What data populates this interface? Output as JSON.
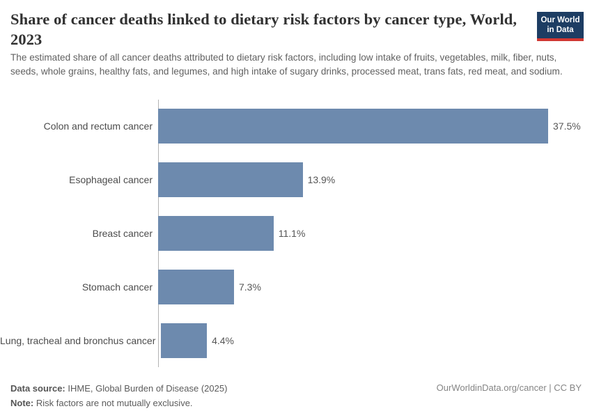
{
  "header": {
    "title": "Share of cancer deaths linked to dietary risk factors by cancer type, World, 2023",
    "subtitle": "The estimated share of all cancer deaths attributed to dietary risk factors, including low intake of fruits, vegetables, milk, fiber, nuts, seeds, whole grains, healthy fats, and legumes, and high intake of sugary drinks, processed meat, trans fats, red meat, and sodium."
  },
  "logo": {
    "line1": "Our World",
    "line2": "in Data",
    "bg_color": "#1d3d63",
    "accent_color": "#d23732"
  },
  "chart_data": {
    "type": "bar",
    "orientation": "horizontal",
    "title": "Share of cancer deaths linked to dietary risk factors by cancer type, World, 2023",
    "categories": [
      "Colon and rectum cancer",
      "Esophageal cancer",
      "Breast cancer",
      "Stomach cancer",
      "Lung, tracheal and bronchus cancer"
    ],
    "values": [
      37.5,
      13.9,
      11.1,
      7.3,
      4.4
    ],
    "value_labels": [
      "37.5%",
      "13.9%",
      "11.1%",
      "7.3%",
      "4.4%"
    ],
    "unit": "%",
    "xlim": [
      0,
      37.5
    ],
    "grid": false,
    "legend": "none",
    "bar_color": "#6d8aae",
    "axis_color": "#b3b3b3"
  },
  "footer": {
    "data_source_label": "Data source:",
    "data_source_value": "IHME, Global Burden of Disease (2025)",
    "note_label": "Note:",
    "note_value": "Risk factors are not mutually exclusive.",
    "attribution": "OurWorldinData.org/cancer | CC BY"
  }
}
